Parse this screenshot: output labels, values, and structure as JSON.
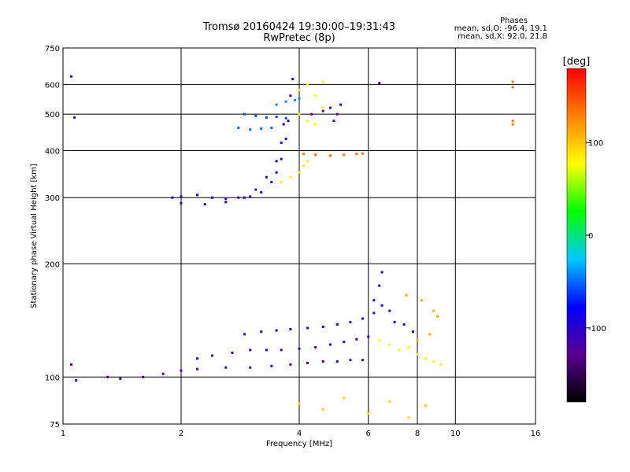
{
  "chart_data": {
    "type": "scatter",
    "title": "Tromsø 20160424 19:30:00–19:31:43",
    "subtitle": "RwPretec (8p)",
    "xlabel": "Frequency [MHz]",
    "ylabel": "Stationary phase Virtual Height [km]",
    "xscale": "log",
    "yscale": "log",
    "xlim": [
      1,
      16
    ],
    "ylim": [
      75,
      750
    ],
    "xticks": [
      1,
      2,
      4,
      6,
      8,
      10,
      16
    ],
    "yticks": [
      75,
      100,
      200,
      300,
      400,
      500,
      600,
      750
    ],
    "grid": true,
    "stats": {
      "heading": "Phases",
      "line1": "mean, sd,O: -96.4, 19.1",
      "line2": "mean, sd,X:  92.0, 21.8"
    },
    "colorbar": {
      "label": "[deg]",
      "range": [
        -180,
        180
      ],
      "ticks": [
        -100,
        0,
        100
      ],
      "colors": [
        "#000000",
        "#5a0090",
        "#0000ff",
        "#00c8ff",
        "#00ff00",
        "#ffff00",
        "#ff8000",
        "#ff0000"
      ]
    },
    "series": [
      {
        "phase": -110,
        "points": [
          [
            1.9,
            300
          ],
          [
            2.0,
            302
          ],
          [
            2.2,
            305
          ],
          [
            2.4,
            300
          ],
          [
            2.6,
            298
          ],
          [
            2.8,
            300
          ],
          [
            3.0,
            302
          ],
          [
            3.2,
            310
          ],
          [
            3.4,
            330
          ],
          [
            3.5,
            350
          ],
          [
            3.6,
            380
          ],
          [
            3.7,
            430
          ],
          [
            3.75,
            480
          ],
          [
            3.8,
            560
          ],
          [
            3.85,
            620
          ]
        ]
      },
      {
        "phase": -105,
        "points": [
          [
            2.0,
            290
          ],
          [
            2.3,
            288
          ],
          [
            2.6,
            292
          ],
          [
            2.9,
            300
          ],
          [
            3.1,
            315
          ],
          [
            3.3,
            340
          ],
          [
            3.5,
            375
          ],
          [
            3.6,
            420
          ],
          [
            3.65,
            470
          ]
        ]
      },
      {
        "phase": -60,
        "points": [
          [
            2.9,
            500
          ],
          [
            3.1,
            495
          ],
          [
            3.3,
            490
          ],
          [
            3.5,
            492
          ],
          [
            3.7,
            488
          ]
        ]
      },
      {
        "phase": -50,
        "points": [
          [
            2.8,
            460
          ],
          [
            3.0,
            455
          ],
          [
            3.2,
            458
          ],
          [
            3.4,
            460
          ]
        ]
      },
      {
        "phase": -40,
        "points": [
          [
            3.5,
            530
          ],
          [
            3.7,
            540
          ],
          [
            3.9,
            545
          ],
          [
            4.0,
            550
          ]
        ]
      },
      {
        "phase": 75,
        "points": [
          [
            4.0,
            580
          ],
          [
            4.2,
            600
          ],
          [
            4.4,
            560
          ],
          [
            4.6,
            520
          ],
          [
            4.2,
            480
          ],
          [
            4.4,
            470
          ],
          [
            4.0,
            500
          ],
          [
            4.6,
            610
          ]
        ]
      },
      {
        "phase": 85,
        "points": [
          [
            3.6,
            330
          ],
          [
            3.8,
            340
          ],
          [
            4.0,
            350
          ],
          [
            4.1,
            365
          ],
          [
            4.2,
            375
          ]
        ]
      },
      {
        "phase": 135,
        "points": [
          [
            4.1,
            392
          ],
          [
            4.4,
            390
          ],
          [
            4.8,
            388
          ],
          [
            5.2,
            390
          ],
          [
            5.6,
            392
          ],
          [
            5.8,
            393
          ]
        ]
      },
      {
        "phase": -120,
        "points": [
          [
            4.3,
            500
          ],
          [
            4.6,
            510
          ],
          [
            4.8,
            520
          ],
          [
            5.0,
            500
          ],
          [
            4.9,
            480
          ],
          [
            5.1,
            530
          ]
        ]
      },
      {
        "phase": -125,
        "points": [
          [
            1.3,
            100
          ],
          [
            1.4,
            99
          ],
          [
            1.6,
            100
          ],
          [
            1.8,
            102
          ],
          [
            2.0,
            104
          ],
          [
            2.2,
            105
          ],
          [
            2.6,
            106
          ],
          [
            3.0,
            106
          ],
          [
            3.4,
            107
          ],
          [
            3.8,
            108
          ],
          [
            4.2,
            109
          ],
          [
            4.6,
            110
          ],
          [
            5.0,
            110
          ],
          [
            5.4,
            111
          ],
          [
            5.8,
            111
          ]
        ]
      },
      {
        "phase": -115,
        "points": [
          [
            2.2,
            112
          ],
          [
            2.4,
            114
          ],
          [
            2.7,
            116
          ],
          [
            3.0,
            118
          ],
          [
            3.3,
            118
          ],
          [
            3.6,
            118
          ],
          [
            4.0,
            119
          ],
          [
            4.4,
            120
          ],
          [
            4.8,
            122
          ],
          [
            5.2,
            124
          ],
          [
            5.6,
            126
          ],
          [
            6.0,
            128
          ]
        ]
      },
      {
        "phase": -108,
        "points": [
          [
            2.9,
            130
          ],
          [
            3.2,
            132
          ],
          [
            3.5,
            133
          ],
          [
            3.8,
            134
          ],
          [
            4.2,
            135
          ],
          [
            4.6,
            136
          ],
          [
            5.0,
            138
          ],
          [
            5.4,
            140
          ],
          [
            5.8,
            143
          ],
          [
            6.2,
            148
          ],
          [
            6.5,
            155
          ]
        ]
      },
      {
        "phase": -100,
        "points": [
          [
            6.2,
            160
          ],
          [
            6.4,
            175
          ],
          [
            6.5,
            190
          ],
          [
            6.8,
            150
          ],
          [
            7.0,
            140
          ],
          [
            7.4,
            138
          ],
          [
            7.8,
            132
          ]
        ]
      },
      {
        "phase": 80,
        "points": [
          [
            6.4,
            125
          ],
          [
            6.8,
            122
          ],
          [
            7.2,
            118
          ],
          [
            7.6,
            120
          ],
          [
            8.0,
            115
          ],
          [
            8.4,
            112
          ],
          [
            8.8,
            110
          ],
          [
            9.2,
            108
          ]
        ]
      },
      {
        "phase": 110,
        "points": [
          [
            7.5,
            165
          ],
          [
            8.2,
            160
          ],
          [
            8.8,
            150
          ],
          [
            9.0,
            145
          ],
          [
            8.6,
            130
          ],
          [
            8.0,
            125
          ]
        ]
      },
      {
        "phase": 95,
        "points": [
          [
            4.0,
            85
          ],
          [
            4.6,
            82
          ],
          [
            5.2,
            88
          ],
          [
            6.0,
            80
          ],
          [
            6.8,
            86
          ],
          [
            7.6,
            78
          ],
          [
            8.4,
            84
          ]
        ]
      },
      {
        "phase": 130,
        "points": [
          [
            14,
            610
          ],
          [
            14,
            590
          ],
          [
            14,
            480
          ],
          [
            14,
            470
          ]
        ]
      },
      {
        "phase": -120,
        "points": [
          [
            1.05,
            630
          ],
          [
            1.07,
            490
          ],
          [
            1.05,
            108
          ],
          [
            1.08,
            98
          ],
          [
            6.4,
            605
          ]
        ]
      }
    ]
  }
}
